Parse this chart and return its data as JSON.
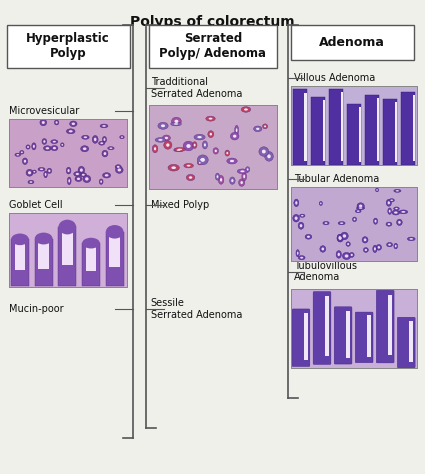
{
  "title": "Polyps of colorectum",
  "title_fontsize": 10,
  "title_weight": "bold",
  "bg_color": "#f0f0eb",
  "box_color": "#ffffff",
  "box_edge": "#555555",
  "text_color": "#111111",
  "columns": [
    {
      "header": "Hyperplastic\nPolyp",
      "items": [
        "Microvesicular",
        "Goblet Cell",
        "Mucin-poor"
      ]
    },
    {
      "header": "Serrated\nPolyp/ Adenoma",
      "items": [
        "Tradditional\nSerrated Adenoma",
        "Mixed Polyp",
        "Sessile\nSerrated Adenoma"
      ]
    },
    {
      "header": "Adenoma",
      "items": [
        "Villous Adenoma",
        "Tubular Adenoma",
        "Tubulovillous\nAdenoma"
      ]
    }
  ]
}
